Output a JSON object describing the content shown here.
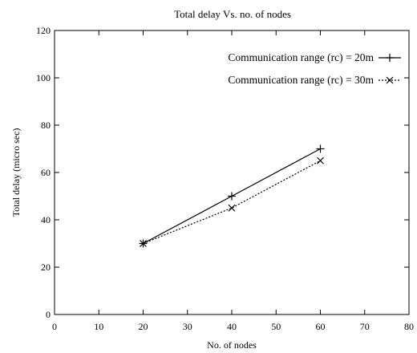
{
  "chart_data": {
    "type": "line",
    "title": "Total delay Vs. no. of nodes",
    "xlabel": "No. of nodes",
    "ylabel": "Total delay (micro sec)",
    "xlim": [
      0,
      80
    ],
    "ylim": [
      0,
      120
    ],
    "xticks": [
      0,
      10,
      20,
      30,
      40,
      50,
      60,
      70,
      80
    ],
    "yticks": [
      0,
      20,
      40,
      60,
      80,
      100,
      120
    ],
    "grid": false,
    "legend_position": "top-right",
    "series": [
      {
        "name": "Communication range (rc) = 20m",
        "x": [
          20,
          40,
          60
        ],
        "y": [
          30,
          50,
          70
        ],
        "line_style": "solid",
        "marker": "plus",
        "color": "#000000"
      },
      {
        "name": "Communication range (rc) = 30m",
        "x": [
          20,
          40,
          60
        ],
        "y": [
          30,
          45,
          65
        ],
        "line_style": "dotted",
        "marker": "cross",
        "color": "#000000"
      }
    ]
  }
}
